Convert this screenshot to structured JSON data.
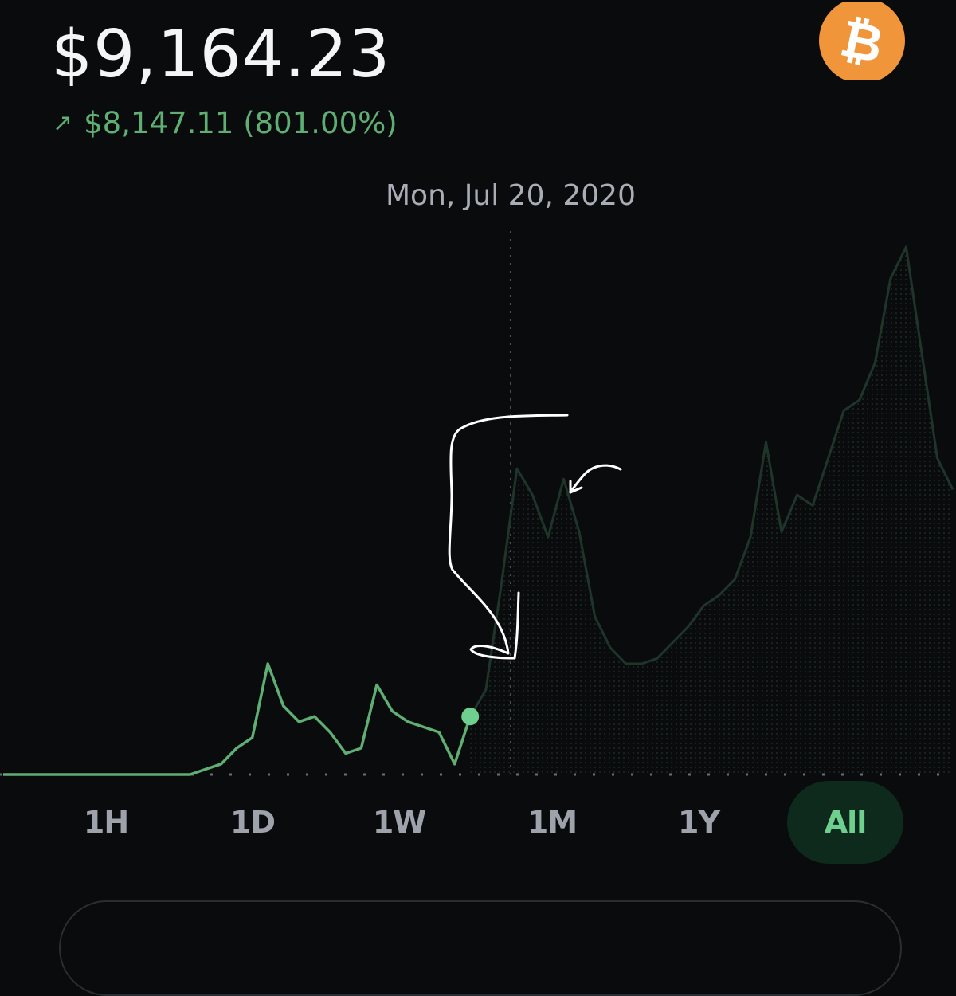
{
  "header": {
    "price": "$9,164.23",
    "change_arrow": "↗",
    "change_text": "$8,147.11 (801.00%)",
    "coin_icon": "bitcoin-icon"
  },
  "scrubber": {
    "date": "Mon, Jul 20, 2020"
  },
  "colors": {
    "background": "#0a0b0d",
    "positive": "#5fae73",
    "accent_green": "#6fcf8e",
    "dimmed_line": "#20352a",
    "bitcoin_orange": "#f0953a"
  },
  "time_ranges": [
    {
      "label": "1H",
      "active": false
    },
    {
      "label": "1D",
      "active": false
    },
    {
      "label": "1W",
      "active": false
    },
    {
      "label": "1M",
      "active": false
    },
    {
      "label": "1Y",
      "active": false
    },
    {
      "label": "All",
      "active": true
    }
  ],
  "chart_data": {
    "type": "line",
    "title": "",
    "xlabel": "",
    "ylabel": "",
    "series": [
      {
        "values": [
          0,
          0,
          0,
          0,
          0,
          0,
          0,
          0,
          0,
          0,
          0,
          0,
          0,
          0.01,
          0.02,
          0.05,
          0.07,
          0.21,
          0.13,
          0.1,
          0.11,
          0.08,
          0.04,
          0.05,
          0.17,
          0.12,
          0.1,
          0.09,
          0.08,
          0.02,
          0.11,
          0.16,
          0.36,
          0.58,
          0.53,
          0.45,
          0.56,
          0.46,
          0.3,
          0.24,
          0.21,
          0.21,
          0.22,
          0.25,
          0.28,
          0.32,
          0.34,
          0.37,
          0.45,
          0.63,
          0.46,
          0.53,
          0.51,
          0.6,
          0.69,
          0.71,
          0.78,
          0.94,
          1.0,
          0.8,
          0.6,
          0.54
        ]
      }
    ],
    "highlight": {
      "date": "Mon, Jul 20, 2020",
      "index": 30
    }
  },
  "annotations": {
    "hand_drawn_arrows": 2
  }
}
